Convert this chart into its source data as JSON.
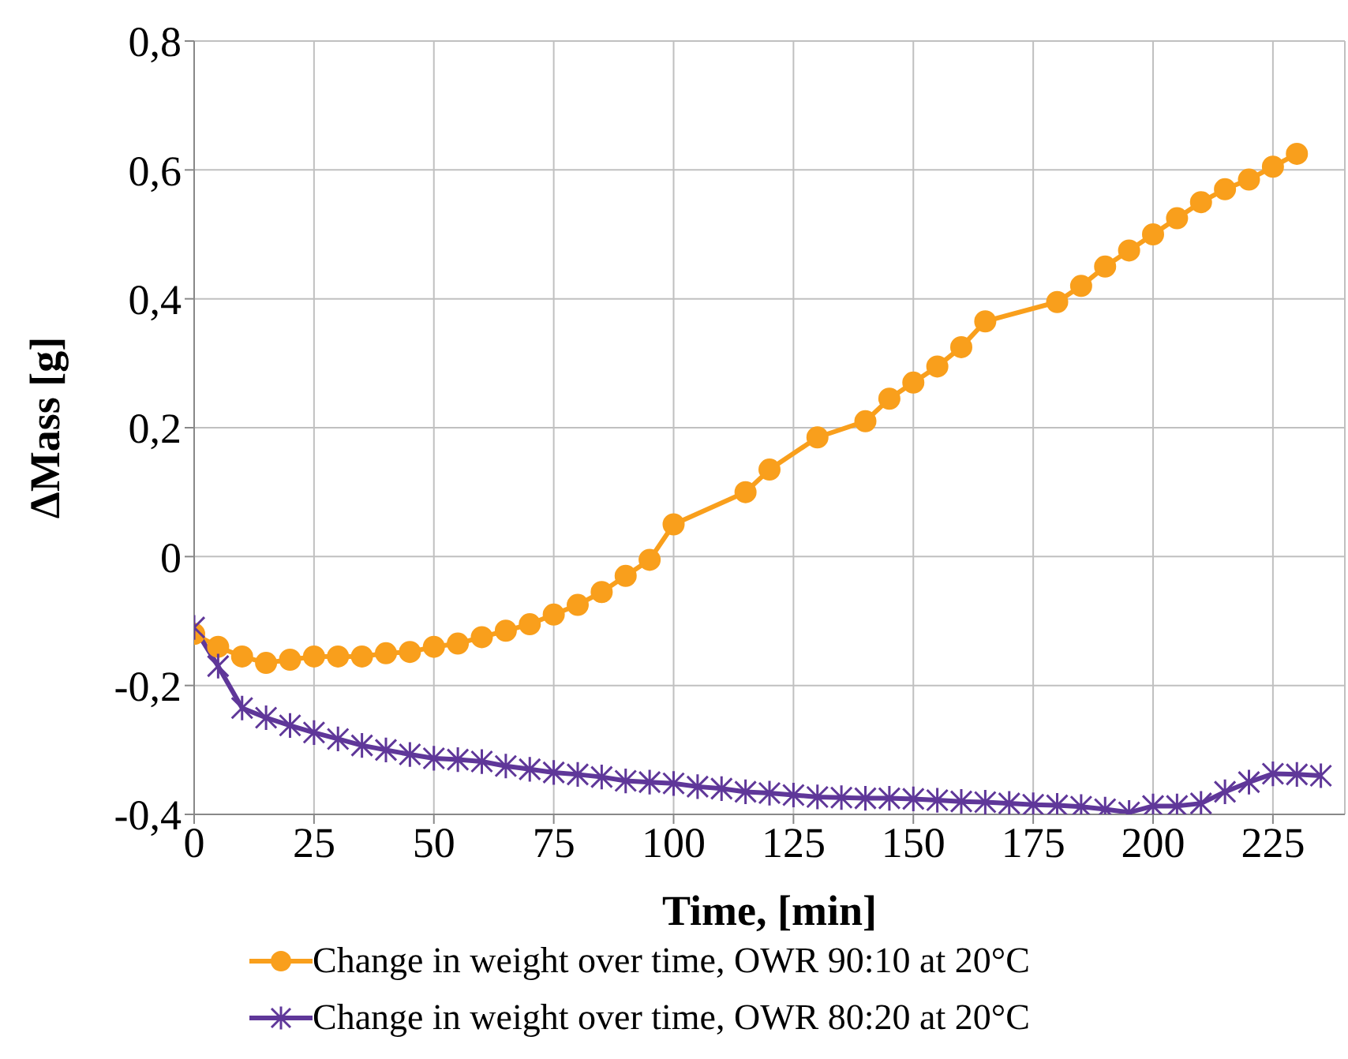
{
  "chart_data": {
    "type": "line",
    "xlabel": "Time, [min]",
    "ylabel": "ΔMass [g]",
    "xlim": [
      0,
      240
    ],
    "xticks": [
      0,
      25,
      50,
      75,
      100,
      125,
      150,
      175,
      200,
      225
    ],
    "ylim": [
      -0.4,
      0.8
    ],
    "yticks": [
      {
        "value": -0.4,
        "label": "-0,4"
      },
      {
        "value": -0.2,
        "label": "-0,2"
      },
      {
        "value": 0,
        "label": "0"
      },
      {
        "value": 0.2,
        "label": "0,2"
      },
      {
        "value": 0.4,
        "label": "0,4"
      },
      {
        "value": 0.6,
        "label": "0,6"
      },
      {
        "value": 0.8,
        "label": "0,8"
      }
    ],
    "grid": true,
    "legend": "bottom",
    "line_style": "solid",
    "series": [
      {
        "name": "Change in weight over time, OWR 90:10 at 20°C",
        "color": "#f99f1c",
        "marker": "circle",
        "x": [
          0,
          5,
          10,
          15,
          20,
          25,
          30,
          35,
          40,
          45,
          50,
          55,
          60,
          65,
          70,
          75,
          80,
          85,
          90,
          95,
          100,
          115,
          120,
          130,
          140,
          145,
          150,
          155,
          160,
          165,
          180,
          185,
          190,
          195,
          200,
          205,
          210,
          215,
          220,
          225,
          230
        ],
        "values": [
          -0.12,
          -0.14,
          -0.155,
          -0.165,
          -0.16,
          -0.155,
          -0.155,
          -0.155,
          -0.15,
          -0.148,
          -0.14,
          -0.135,
          -0.125,
          -0.115,
          -0.105,
          -0.09,
          -0.075,
          -0.055,
          -0.03,
          -0.005,
          0.05,
          0.1,
          0.135,
          0.185,
          0.21,
          0.245,
          0.27,
          0.295,
          0.325,
          0.365,
          0.395,
          0.42,
          0.45,
          0.475,
          0.5,
          0.525,
          0.55,
          0.57,
          0.585,
          0.605,
          0.625
        ]
      },
      {
        "name": "Change in weight over time, OWR 80:20 at 20°C",
        "color": "#5f3799",
        "marker": "cross",
        "x": [
          0,
          5,
          10,
          15,
          20,
          25,
          30,
          35,
          40,
          45,
          50,
          55,
          60,
          65,
          70,
          75,
          80,
          85,
          90,
          95,
          100,
          105,
          110,
          115,
          120,
          125,
          130,
          135,
          140,
          145,
          150,
          155,
          160,
          165,
          170,
          175,
          180,
          185,
          190,
          195,
          200,
          205,
          210,
          215,
          220,
          225,
          230,
          235
        ],
        "values": [
          -0.11,
          -0.17,
          -0.235,
          -0.25,
          -0.262,
          -0.273,
          -0.283,
          -0.293,
          -0.3,
          -0.307,
          -0.313,
          -0.315,
          -0.318,
          -0.325,
          -0.33,
          -0.335,
          -0.338,
          -0.342,
          -0.348,
          -0.35,
          -0.352,
          -0.357,
          -0.36,
          -0.365,
          -0.367,
          -0.37,
          -0.373,
          -0.374,
          -0.375,
          -0.375,
          -0.376,
          -0.378,
          -0.38,
          -0.381,
          -0.383,
          -0.385,
          -0.386,
          -0.388,
          -0.392,
          -0.397,
          -0.387,
          -0.387,
          -0.383,
          -0.365,
          -0.35,
          -0.337,
          -0.338,
          -0.34
        ]
      }
    ]
  }
}
